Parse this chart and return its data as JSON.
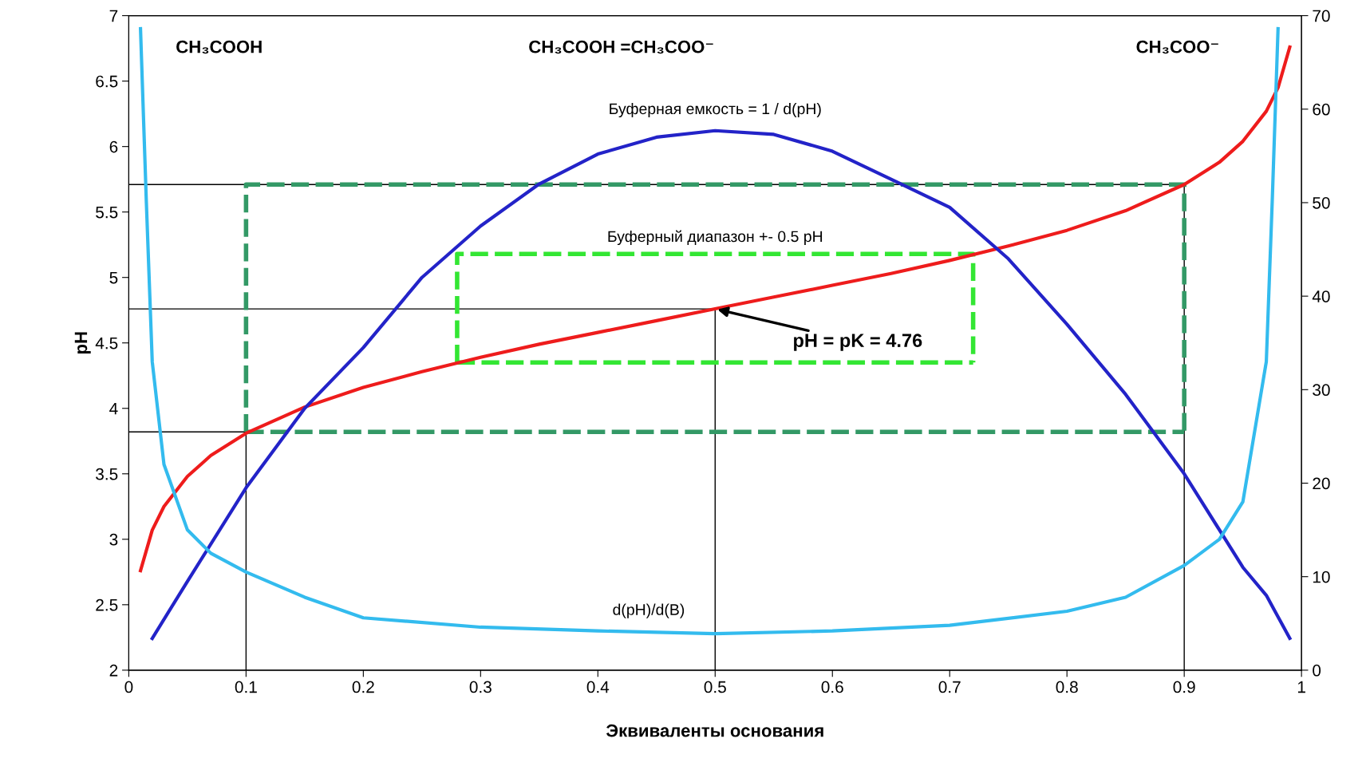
{
  "chart_data": {
    "type": "line",
    "xlabel": "Эквиваленты основания",
    "ylabel": "pH",
    "xlim": [
      0,
      1
    ],
    "xticks": [
      0,
      0.1,
      0.2,
      0.3,
      0.4,
      0.5,
      0.6,
      0.7,
      0.8,
      0.9,
      1
    ],
    "ylim": [
      2,
      7
    ],
    "yticks": [
      2,
      2.5,
      3,
      3.5,
      4,
      4.5,
      5,
      5.5,
      6,
      6.5,
      7
    ],
    "y2lim": [
      0,
      70
    ],
    "y2ticks": [
      0,
      10,
      20,
      30,
      40,
      50,
      60,
      70
    ],
    "grid": false,
    "marker": "none",
    "annotations": [
      "CH₃COOH",
      "CH₃COOH =CH₃COO⁻",
      "CH₃COO⁻",
      {
        "text": "pH = pK = 4.76",
        "x": 0.5,
        "y": 4.76
      }
    ],
    "series": [
      {
        "line_style": "solid",
        "color": "#000000",
        "x": [
          0,
          0.1,
          0.1
        ],
        "values": [
          3.82,
          3.82,
          2
        ]
      },
      {
        "line_style": "solid",
        "color": "#000000",
        "x": [
          0,
          0.5,
          0.5
        ],
        "values": [
          4.76,
          4.76,
          2
        ]
      },
      {
        "line_style": "solid",
        "color": "#000000",
        "x": [
          0,
          0.9,
          0.9
        ],
        "values": [
          5.71,
          5.71,
          2
        ]
      },
      {
        "line_style": "dashed",
        "color": "#339966",
        "x": [
          0.1,
          0.1,
          0.9,
          0.9
        ],
        "values": [
          3.82,
          5.71,
          5.71,
          3.82
        ]
      },
      {
        "line_style": "dashed",
        "color": "#33e633",
        "name": "Буферный диапазон +- 0.5 pH",
        "x": [
          0.28,
          0.28,
          0.72,
          0.72
        ],
        "values": [
          4.35,
          5.18,
          5.18,
          4.35
        ]
      },
      {
        "line_style": "dashed",
        "color": "#339966",
        "x": [
          0.1,
          0.9
        ],
        "values": [
          3.82,
          3.82
        ]
      },
      {
        "line_style": "dashed",
        "color": "#33e633",
        "x": [
          0.28,
          0.72
        ],
        "values": [
          4.35,
          4.35
        ]
      },
      {
        "line_style": "solid",
        "color": "#ee1c1c",
        "x": [
          0.01,
          0.02,
          0.03,
          0.05,
          0.07,
          0.1,
          0.15,
          0.2,
          0.25,
          0.3,
          0.35,
          0.4,
          0.45,
          0.5,
          0.55,
          0.6,
          0.65,
          0.7,
          0.75,
          0.8,
          0.85,
          0.9,
          0.93,
          0.95,
          0.97,
          0.98,
          0.99
        ],
        "values": [
          2.76,
          3.07,
          3.25,
          3.48,
          3.64,
          3.81,
          4.01,
          4.16,
          4.28,
          4.39,
          4.49,
          4.58,
          4.67,
          4.76,
          4.85,
          4.94,
          5.03,
          5.13,
          5.24,
          5.36,
          5.51,
          5.71,
          5.88,
          6.04,
          6.27,
          6.45,
          6.76
        ]
      },
      {
        "line_style": "solid",
        "color": "#2323c8",
        "axis": "y2",
        "name": "Буферная емкость = 1 / d(pH)",
        "x": [
          0.02,
          0.05,
          0.1,
          0.15,
          0.2,
          0.25,
          0.3,
          0.35,
          0.4,
          0.45,
          0.5,
          0.55,
          0.6,
          0.65,
          0.7,
          0.75,
          0.8,
          0.85,
          0.9,
          0.95,
          0.97,
          0.99
        ],
        "values": [
          3.4,
          9.5,
          19.5,
          28,
          34.5,
          42,
          47.5,
          52,
          55.2,
          57,
          57.7,
          57.3,
          55.5,
          52.5,
          49.5,
          44,
          37,
          29.5,
          21,
          11,
          8,
          3.4
        ]
      },
      {
        "line_style": "solid",
        "color": "#33bbee",
        "axis": "y2",
        "name": "d(pH)/d(B)",
        "x": [
          0.01,
          0.015,
          0.02,
          0.03,
          0.05,
          0.07,
          0.1,
          0.15,
          0.2,
          0.3,
          0.4,
          0.5,
          0.6,
          0.7,
          0.8,
          0.85,
          0.9,
          0.93,
          0.95,
          0.97,
          0.975,
          0.98
        ],
        "values": [
          68.6,
          50,
          33,
          22,
          15,
          12.5,
          10.5,
          7.8,
          5.6,
          4.6,
          4.2,
          3.9,
          4.2,
          4.8,
          6.3,
          7.8,
          11.2,
          14,
          18,
          33,
          50,
          68.6
        ]
      }
    ]
  }
}
